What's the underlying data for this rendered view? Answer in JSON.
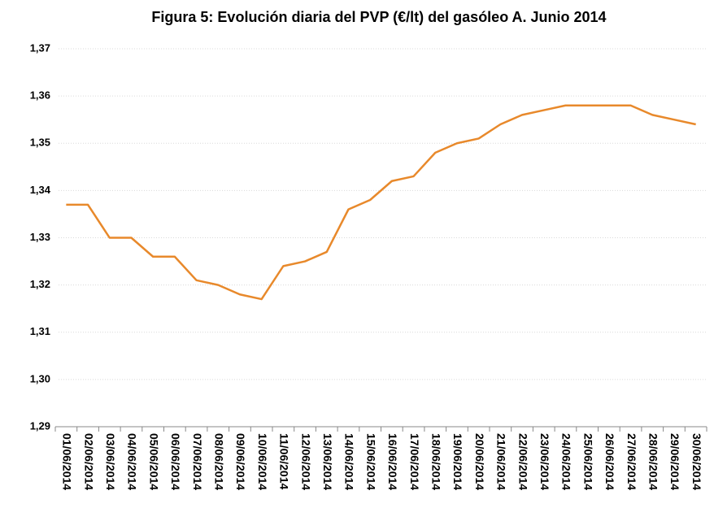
{
  "chart_data": {
    "type": "line",
    "title": "Figura 5: Evolución diaria del PVP (€/lt) del gasóleo A. Junio 2014",
    "categories": [
      "01/06/2014",
      "02/06/2014",
      "03/06/2014",
      "04/06/2014",
      "05/06/2014",
      "06/06/2014",
      "07/06/2014",
      "08/06/2014",
      "09/06/2014",
      "10/06/2014",
      "11/06/2014",
      "12/06/2014",
      "13/06/2014",
      "14/06/2014",
      "15/06/2014",
      "16/06/2014",
      "17/06/2014",
      "18/06/2014",
      "19/06/2014",
      "20/06/2014",
      "21/06/2014",
      "22/06/2014",
      "23/06/2014",
      "24/06/2014",
      "25/06/2014",
      "26/06/2014",
      "27/06/2014",
      "28/06/2014",
      "29/06/2014",
      "30/06/2014"
    ],
    "values": [
      1.337,
      1.337,
      1.33,
      1.33,
      1.326,
      1.326,
      1.321,
      1.32,
      1.318,
      1.317,
      1.324,
      1.325,
      1.327,
      1.336,
      1.338,
      1.342,
      1.343,
      1.348,
      1.35,
      1.351,
      1.354,
      1.356,
      1.357,
      1.358,
      1.358,
      1.358,
      1.358,
      1.356,
      1.355,
      1.354
    ],
    "color": "#e8892b",
    "ylim": [
      1.29,
      1.37
    ],
    "yticks": [
      {
        "value": 1.29,
        "label": "1,29"
      },
      {
        "value": 1.3,
        "label": "1,30"
      },
      {
        "value": 1.31,
        "label": "1,31"
      },
      {
        "value": 1.32,
        "label": "1,32"
      },
      {
        "value": 1.33,
        "label": "1,33"
      },
      {
        "value": 1.34,
        "label": "1,34"
      },
      {
        "value": 1.35,
        "label": "1,35"
      },
      {
        "value": 1.36,
        "label": "1,36"
      },
      {
        "value": 1.37,
        "label": "1,37"
      }
    ],
    "grid": true
  }
}
